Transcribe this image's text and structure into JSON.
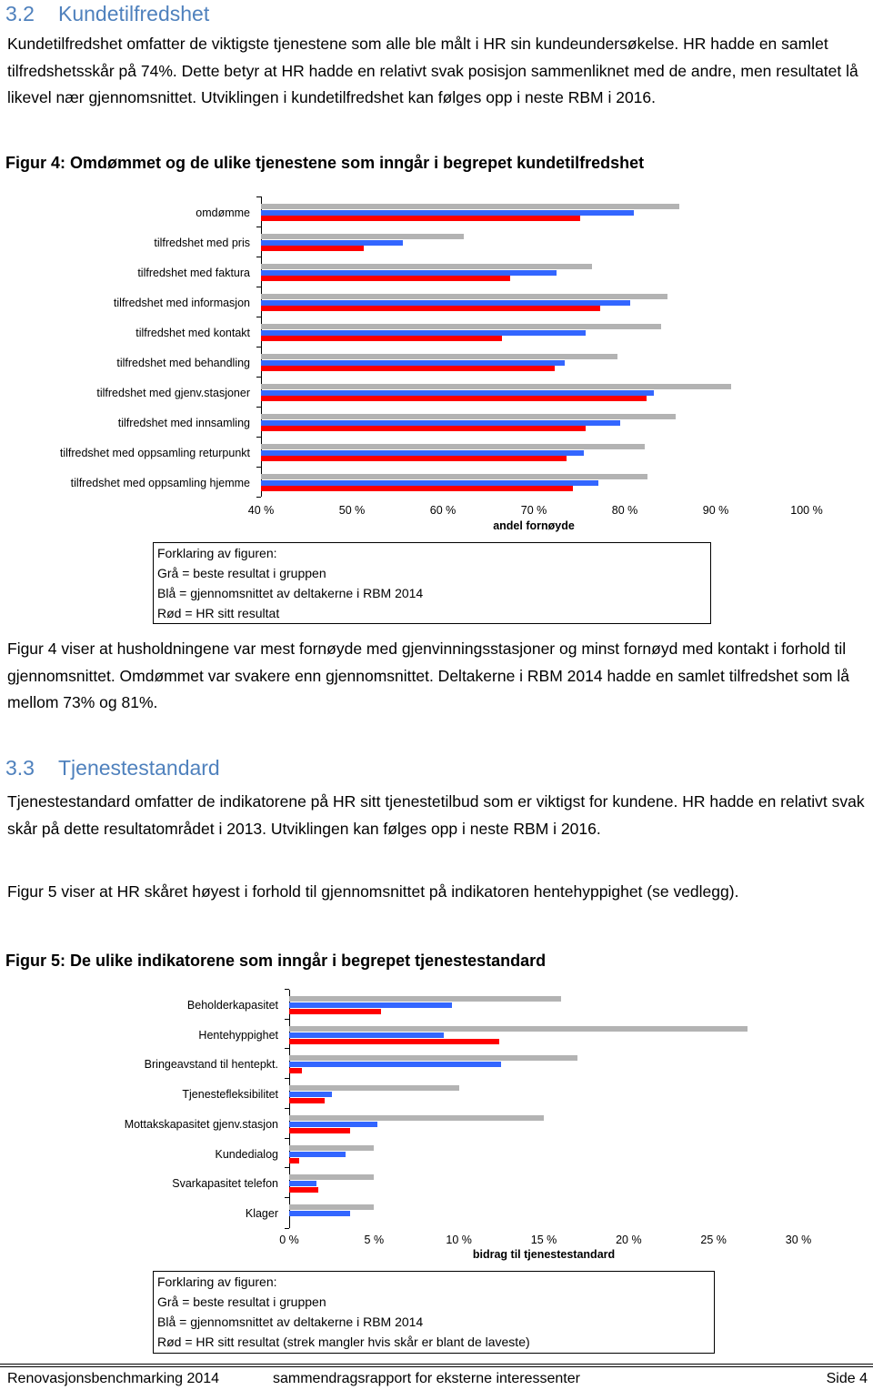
{
  "sections": [
    {
      "number": "3.2",
      "title": "Kundetilfredshet",
      "intro": "Kundetilfredshet omfatter de viktigste tjenestene som alle ble målt i HR sin kundeundersøkelse. HR hadde en samlet tilfredshetsskår på 74%. Dette betyr at HR hadde en relativt svak posisjon sammenliknet med de andre, men resultatet lå likevel nær gjennomsnittet. Utviklingen i kundetilfredshet kan følges opp i neste RBM i 2016.",
      "figure_caption": "Figur 4: Omdømmet og de ulike tjenestene som inngår i begrepet kundetilfredshet",
      "explanation": [
        "Forklaring av figuren:",
        "Grå = beste resultat i gruppen",
        "Blå = gjennomsnittet av deltakerne i RBM 2014",
        "Rød = HR sitt resultat"
      ],
      "discussion": "Figur 4 viser at husholdningene var mest fornøyde med gjenvinningsstasjoner og minst fornøyd med kontakt i forhold til gjennomsnittet. Omdømmet var svakere enn gjennomsnittet. Deltakerne i RBM 2014 hadde en samlet tilfredshet som lå mellom 73% og 81%."
    },
    {
      "number": "3.3",
      "title": "Tjenestestandard",
      "intro": "Tjenestestandard omfatter de indikatorene på HR sitt tjenestetilbud  som er viktigst for kundene. HR hadde en relativt svak skår på dette resultatområdet i 2013. Utviklingen kan følges opp i neste RBM i 2016.",
      "discussion": "Figur 5 viser at HR skåret høyest i forhold til gjennomsnittet på indikatoren hentehyppighet (se vedlegg).",
      "figure_caption": "Figur 5: De ulike indikatorene som inngår i begrepet tjenestestandard",
      "explanation": [
        "Forklaring av figuren:",
        "Grå = beste resultat i gruppen",
        "Blå = gjennomsnittet av deltakerne i RBM 2014",
        "Rød = HR sitt resultat (strek mangler hvis skår er blant de laveste)"
      ]
    }
  ],
  "chart_data": [
    {
      "type": "bar",
      "orientation": "horizontal",
      "categories": [
        "omdømme",
        "tilfredshet med pris",
        "tilfredshet med faktura",
        "tilfredshet med informasjon",
        "tilfredshet med kontakt",
        "tilfredshet med behandling",
        "tilfredshet med gjenv.stasjoner",
        "tilfredshet med innsamling",
        "tilfredshet med oppsamling returpunkt",
        "tilfredshet med oppsamling hjemme"
      ],
      "series": [
        {
          "color": "#b3b3b3",
          "values": [
            86,
            62.3,
            76.4,
            84.7,
            84,
            79.2,
            91.7,
            85.6,
            82.2,
            82.5
          ]
        },
        {
          "color": "#3366ff",
          "values": [
            81,
            55.6,
            72.5,
            80.6,
            75.7,
            73.4,
            83.2,
            79.5,
            75.5,
            77.1
          ]
        },
        {
          "color": "#ff0000",
          "values": [
            75.1,
            51.3,
            67.4,
            77.3,
            66.5,
            72.3,
            82.4,
            75.7,
            73.6,
            74.3
          ]
        }
      ],
      "xlim": [
        40,
        100
      ],
      "xticks": [
        {
          "value": 40,
          "label": "40 %"
        },
        {
          "value": 50,
          "label": "50 %"
        },
        {
          "value": 60,
          "label": "60 %"
        },
        {
          "value": 70,
          "label": "70 %"
        },
        {
          "value": 80,
          "label": "80 %"
        },
        {
          "value": 90,
          "label": "90 %"
        },
        {
          "value": 100,
          "label": "100 %"
        }
      ],
      "xlabel": "andel fornøyde"
    },
    {
      "type": "bar",
      "orientation": "horizontal",
      "categories": [
        "Beholderkapasitet",
        "Hentehyppighet",
        "Bringeavstand til hentepkt.",
        "Tjenestefleksibilitet",
        "Mottakskapasitet gjenv.stasjon",
        "Kundedialog",
        "Svarkapasitet telefon",
        "Klager"
      ],
      "series": [
        {
          "color": "#b3b3b3",
          "values": [
            16,
            27,
            17,
            10,
            15,
            5,
            5,
            5
          ]
        },
        {
          "color": "#3366ff",
          "values": [
            9.6,
            9.1,
            12.5,
            2.5,
            5.2,
            3.3,
            1.6,
            3.6
          ]
        },
        {
          "color": "#ff0000",
          "values": [
            5.4,
            12.4,
            0.75,
            2.1,
            3.6,
            0.6,
            1.7,
            null
          ]
        }
      ],
      "xlim": [
        0,
        30
      ],
      "xticks": [
        {
          "value": 0,
          "label": "0 %"
        },
        {
          "value": 5,
          "label": "5 %"
        },
        {
          "value": 10,
          "label": "10 %"
        },
        {
          "value": 15,
          "label": "15 %"
        },
        {
          "value": 20,
          "label": "20 %"
        },
        {
          "value": 25,
          "label": "25 %"
        },
        {
          "value": 30,
          "label": "30 %"
        }
      ],
      "xlabel": "bidrag til tjenestestandard"
    }
  ],
  "footer": {
    "left": "Renovasjonsbenchmarking 2014",
    "center": "sammendragsrapport for eksterne interessenter",
    "right": "Side 4"
  }
}
